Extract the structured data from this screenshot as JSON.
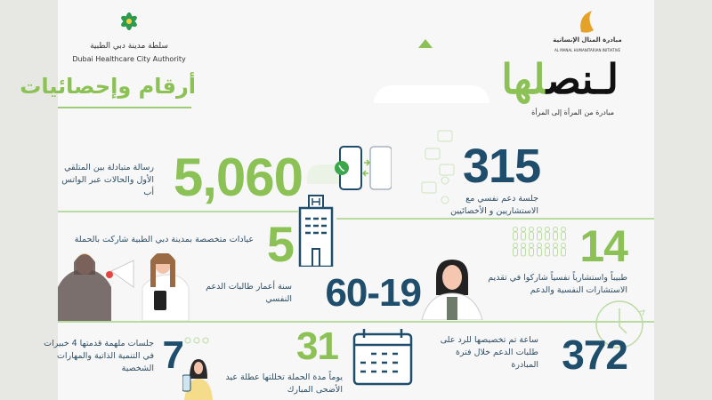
{
  "header": {
    "dhca_name_ar": "سلطة مدينة دبي الطبية",
    "dhca_name_en": "Dubai Healthcare City Authority",
    "almanal_name_ar": "مبادرة المنال الإنسانية",
    "almanal_name_en": "AL MANAL HUMANITARIAN INITIATIVE",
    "title": "أرقام وإحصائيات",
    "campaign_logo_dark": "لـنص",
    "campaign_logo_green": "لها",
    "campaign_tagline": "مبادرة من المرأة إلى المرأة"
  },
  "stats": [
    {
      "value": "315",
      "text": "جلسة دعم نفسي مع الاستشاريين و الأخصائيين",
      "color": "#1f4d6c",
      "icon": "chat-people-icon"
    },
    {
      "value": "5,060",
      "text": "رسالة متبادلة بين المتلقي الأول والحالات عبر الواتس أب",
      "color": "#8bc155",
      "icon": "whatsapp-phones-icon"
    },
    {
      "value": "14",
      "text": "طبيباً واستشارياً نفسياً شاركوا في تقديم الاستشارات النفسية والدعم",
      "color": "#8bc155",
      "icon": "people-icon"
    },
    {
      "value": "5",
      "text": "عيادات متخصصة بمدينة دبي الطبية شاركت بالحملة",
      "color": "#8bc155",
      "icon": "hospital-building-icon"
    },
    {
      "value": "60-19",
      "text": "سنة أعمار طالبات الدعم النفسي",
      "color": "#1f4d6c",
      "icon": "women-megaphone-illustration"
    },
    {
      "value": "372",
      "text": "ساعة تم تخصيصها للرد على طلبات الدعم خلال فترة المبادرة",
      "color": "#1f4d6c",
      "icon": "clock-icon"
    },
    {
      "value": "31",
      "text": "يوماً مدة الحملة تخللتها عطلة عيد الأضحى المبارك",
      "color": "#8bc155",
      "icon": "calendar-icon"
    },
    {
      "value": "7",
      "text": "جلسات ملهمة قدمتها 4 خبيرات في التنمية الذاتية والمهارات الشخصية",
      "color": "#1f4d6c",
      "icon": "woman-phone-illustration"
    }
  ],
  "colors": {
    "green": "#8bc155",
    "navy": "#1f4d6c"
  }
}
